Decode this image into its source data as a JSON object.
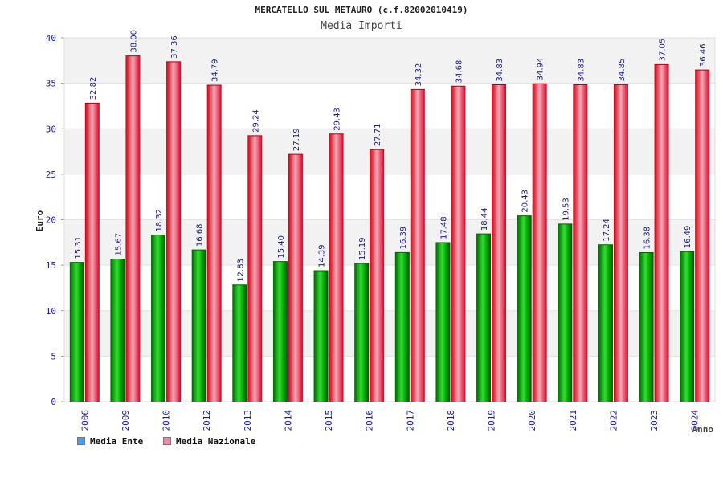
{
  "colors": {
    "ente": "#00aa00",
    "nazionale": "#ee1133",
    "legend_ente": "#5599ee",
    "legend_nazionale": "#ee88aa",
    "axis_text": "#1a1aaa",
    "band": "#f2f2f2"
  },
  "chart_data": {
    "type": "bar",
    "title": "MERCATELLO SUL METAURO (c.f.82002010419)",
    "subtitle": "Media Importi",
    "xlabel": "Anno",
    "ylabel": "Euro",
    "ylim": [
      0,
      40
    ],
    "yticks": [
      0,
      5,
      10,
      15,
      20,
      25,
      30,
      35,
      40
    ],
    "categories": [
      "2006",
      "2009",
      "2010",
      "2012",
      "2013",
      "2014",
      "2015",
      "2016",
      "2017",
      "2018",
      "2019",
      "2020",
      "2021",
      "2022",
      "2023",
      "2024"
    ],
    "series": [
      {
        "name": "Media Ente",
        "values": [
          15.31,
          15.67,
          18.32,
          16.68,
          12.83,
          15.4,
          14.39,
          15.19,
          16.39,
          17.48,
          18.44,
          20.43,
          19.53,
          17.24,
          16.38,
          16.49
        ],
        "labels": [
          "15.31",
          "15.67",
          "18.32",
          "16.68",
          "12.83",
          "15.40",
          "14.39",
          "15.19",
          "16.39",
          "17.48",
          "18.44",
          "20.43",
          "19.53",
          "17.24",
          "16.38",
          "16.49"
        ]
      },
      {
        "name": "Media Nazionale",
        "values": [
          32.82,
          38.0,
          37.36,
          34.79,
          29.24,
          27.19,
          29.43,
          27.71,
          34.32,
          34.68,
          34.83,
          34.94,
          34.83,
          34.85,
          37.05,
          36.46
        ],
        "labels": [
          "32.82",
          "38.00",
          "37.36",
          "34.79",
          "29.24",
          "27.19",
          "29.43",
          "27.71",
          "34.32",
          "34.68",
          "34.83",
          "34.94",
          "34.83",
          "34.85",
          "37.05",
          "36.46"
        ]
      }
    ],
    "legend": [
      "Media Ente",
      "Media Nazionale"
    ],
    "legend_position": "bottom-left",
    "grid": true
  }
}
